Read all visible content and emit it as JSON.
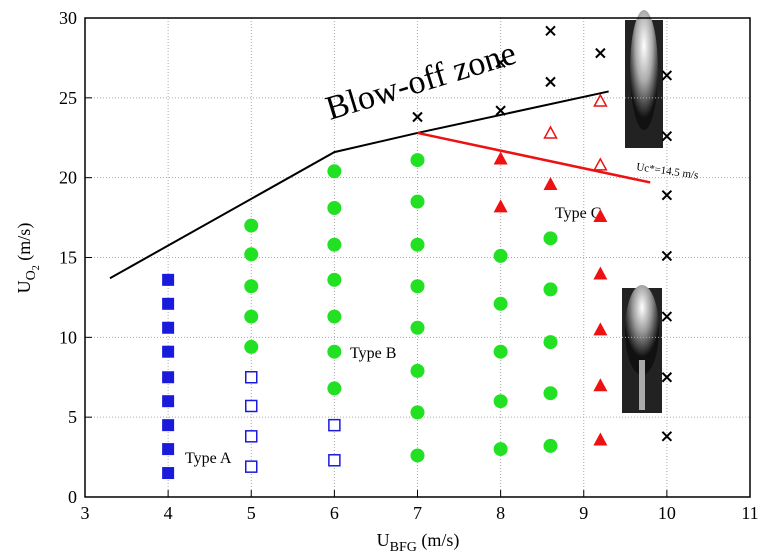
{
  "chart_data": {
    "type": "scatter",
    "x_label": [
      "U",
      "BFG",
      " (m/s)"
    ],
    "y_label": [
      "U",
      "O",
      "2",
      " (m/s)"
    ],
    "annotations": [
      "Blow-off zone",
      "Type A",
      "Type B",
      "Type C",
      "Uc*=14.5 m/s"
    ],
    "xlim": [
      3,
      11
    ],
    "xticks": [
      3,
      4,
      5,
      6,
      7,
      8,
      9,
      10,
      11
    ],
    "ylim": [
      0,
      30
    ],
    "yticks": [
      0,
      5,
      10,
      15,
      20,
      25,
      30
    ],
    "grid": true,
    "series": [
      {
        "marker": "square-filled",
        "color": "#1a1adb",
        "x": [
          4,
          4,
          4,
          4,
          4,
          4,
          4,
          4,
          4
        ],
        "values": [
          13.6,
          12.1,
          10.6,
          9.1,
          7.5,
          6.0,
          4.5,
          3.0,
          1.5
        ]
      },
      {
        "marker": "square-open",
        "color": "#1a1adb",
        "x": [
          5,
          5,
          5,
          5,
          6,
          6
        ],
        "values": [
          7.5,
          5.7,
          3.8,
          1.9,
          4.5,
          2.3
        ]
      },
      {
        "marker": "circle-filled",
        "color": "#22e022",
        "x": [
          5,
          5,
          5,
          5,
          5,
          6,
          6,
          6,
          6,
          6,
          6,
          6,
          7,
          7,
          7,
          7,
          7,
          7,
          7,
          7,
          8,
          8,
          8,
          8,
          8,
          8.6,
          8.6,
          8.6,
          8.6,
          8.6
        ],
        "values": [
          17.0,
          15.2,
          13.2,
          11.3,
          9.4,
          20.4,
          18.1,
          15.8,
          13.6,
          11.3,
          9.1,
          6.8,
          21.1,
          18.5,
          15.8,
          13.2,
          10.6,
          7.9,
          5.3,
          2.6,
          15.1,
          12.1,
          9.1,
          6.0,
          3.0,
          16.2,
          13.0,
          9.7,
          6.5,
          3.2
        ]
      },
      {
        "marker": "triangle-filled",
        "color": "#ee1111",
        "x": [
          8,
          8,
          8.6,
          9.2,
          9.2,
          9.2,
          9.2,
          9.2
        ],
        "values": [
          21.2,
          18.2,
          19.6,
          17.6,
          14.0,
          10.5,
          7.0,
          3.6
        ]
      },
      {
        "marker": "triangle-open",
        "color": "#ee1111",
        "x": [
          8.6,
          9.2,
          9.2
        ],
        "values": [
          22.8,
          24.8,
          20.8
        ]
      },
      {
        "marker": "cross",
        "color": "#000000",
        "x": [
          7,
          8,
          8,
          8.6,
          8.6,
          9.2,
          10,
          10,
          10,
          10,
          10,
          10,
          10
        ],
        "values": [
          23.8,
          27.2,
          24.2,
          29.2,
          26.0,
          27.8,
          26.4,
          22.6,
          18.9,
          15.1,
          11.3,
          7.5,
          3.8
        ]
      },
      {
        "marker": "line",
        "color": "#000000",
        "x": [
          3.3,
          6,
          7,
          9.3
        ],
        "values": [
          13.7,
          21.6,
          22.8,
          25.4
        ]
      },
      {
        "marker": "line",
        "color": "#ee1111",
        "x": [
          7,
          9.8
        ],
        "values": [
          22.8,
          19.7
        ]
      }
    ]
  }
}
